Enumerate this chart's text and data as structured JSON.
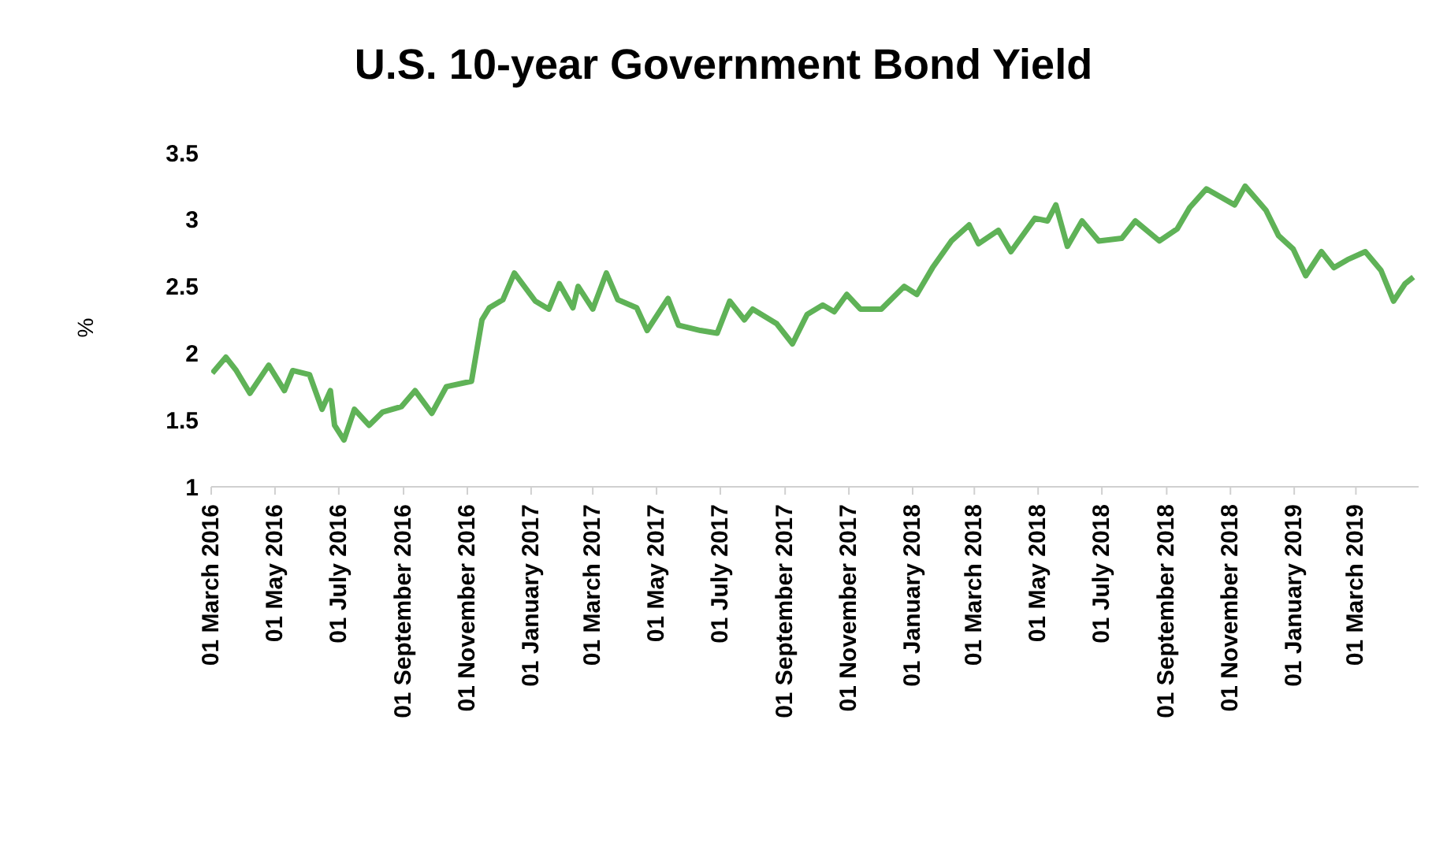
{
  "chart_data": {
    "type": "line",
    "title": "U.S. 10-year Government Bond Yield",
    "ylabel": "%",
    "x": [
      "2016-03-02",
      "2016-03-15",
      "2016-03-25",
      "2016-04-07",
      "2016-04-25",
      "2016-05-10",
      "2016-05-18",
      "2016-06-03",
      "2016-06-15",
      "2016-06-23",
      "2016-06-27",
      "2016-07-06",
      "2016-07-16",
      "2016-07-30",
      "2016-08-12",
      "2016-08-30",
      "2016-09-12",
      "2016-09-28",
      "2016-10-12",
      "2016-11-05",
      "2016-11-15",
      "2016-11-22",
      "2016-12-05",
      "2016-12-16",
      "2017-01-05",
      "2017-01-18",
      "2017-01-28",
      "2017-02-10",
      "2017-02-15",
      "2017-03-01",
      "2017-03-14",
      "2017-03-25",
      "2017-04-12",
      "2017-04-22",
      "2017-05-12",
      "2017-05-22",
      "2017-06-12",
      "2017-06-28",
      "2017-07-10",
      "2017-07-24",
      "2017-08-01",
      "2017-08-24",
      "2017-09-08",
      "2017-09-22",
      "2017-10-07",
      "2017-10-18",
      "2017-10-30",
      "2017-11-12",
      "2017-12-02",
      "2017-12-24",
      "2018-01-05",
      "2018-01-20",
      "2018-02-07",
      "2018-02-24",
      "2018-03-05",
      "2018-03-24",
      "2018-04-05",
      "2018-04-28",
      "2018-05-10",
      "2018-05-18",
      "2018-05-29",
      "2018-06-12",
      "2018-06-28",
      "2018-07-20",
      "2018-08-02",
      "2018-08-25",
      "2018-09-11",
      "2018-09-23",
      "2018-10-09",
      "2018-11-05",
      "2018-11-15",
      "2018-12-05",
      "2018-12-17",
      "2018-12-31",
      "2019-01-12",
      "2019-01-27",
      "2019-02-08",
      "2019-02-21",
      "2019-03-10",
      "2019-03-25",
      "2019-04-06",
      "2019-04-17",
      "2019-04-25"
    ],
    "series": [
      {
        "color": "#5fb257",
        "values": [
          1.85,
          1.97,
          1.87,
          1.7,
          1.91,
          1.72,
          1.87,
          1.84,
          1.58,
          1.72,
          1.46,
          1.35,
          1.58,
          1.46,
          1.56,
          1.6,
          1.72,
          1.55,
          1.75,
          1.79,
          2.25,
          2.34,
          2.4,
          2.6,
          2.39,
          2.33,
          2.52,
          2.34,
          2.5,
          2.33,
          2.6,
          2.4,
          2.34,
          2.17,
          2.41,
          2.21,
          2.17,
          2.15,
          2.39,
          2.25,
          2.33,
          2.22,
          2.07,
          2.29,
          2.36,
          2.31,
          2.44,
          2.33,
          2.33,
          2.5,
          2.44,
          2.64,
          2.84,
          2.96,
          2.82,
          2.92,
          2.76,
          3.01,
          2.99,
          3.11,
          2.8,
          2.99,
          2.84,
          2.86,
          2.99,
          2.84,
          2.93,
          3.09,
          3.23,
          3.11,
          3.25,
          3.07,
          2.88,
          2.78,
          2.58,
          2.76,
          2.64,
          2.7,
          2.76,
          2.62,
          2.39,
          2.52,
          2.57
        ]
      }
    ],
    "xlim": [
      "2016-03-01",
      "2019-04-30"
    ],
    "xticks": [
      {
        "value": "2016-03-01",
        "label": "01 March 2016"
      },
      {
        "value": "2016-05-01",
        "label": "01 May 2016"
      },
      {
        "value": "2016-07-01",
        "label": "01 July 2016"
      },
      {
        "value": "2016-09-01",
        "label": "01 September 2016"
      },
      {
        "value": "2016-11-01",
        "label": "01 November 2016"
      },
      {
        "value": "2017-01-01",
        "label": "01 January 2017"
      },
      {
        "value": "2017-03-01",
        "label": "01 March 2017"
      },
      {
        "value": "2017-05-01",
        "label": "01 May 2017"
      },
      {
        "value": "2017-07-01",
        "label": "01 July 2017"
      },
      {
        "value": "2017-09-01",
        "label": "01 September 2017"
      },
      {
        "value": "2017-11-01",
        "label": "01 November 2017"
      },
      {
        "value": "2018-01-01",
        "label": "01 January 2018"
      },
      {
        "value": "2018-03-01",
        "label": "01 March 2018"
      },
      {
        "value": "2018-05-01",
        "label": "01 May 2018"
      },
      {
        "value": "2018-07-01",
        "label": "01 July 2018"
      },
      {
        "value": "2018-09-01",
        "label": "01 September 2018"
      },
      {
        "value": "2018-11-01",
        "label": "01 November 2018"
      },
      {
        "value": "2019-01-01",
        "label": "01 January 2019"
      },
      {
        "value": "2019-03-01",
        "label": "01 March 2019"
      }
    ],
    "ylim": [
      1,
      3.5
    ],
    "yticks": [
      1,
      1.5,
      2,
      2.5,
      3,
      3.5
    ],
    "grid": false,
    "legend": false
  }
}
